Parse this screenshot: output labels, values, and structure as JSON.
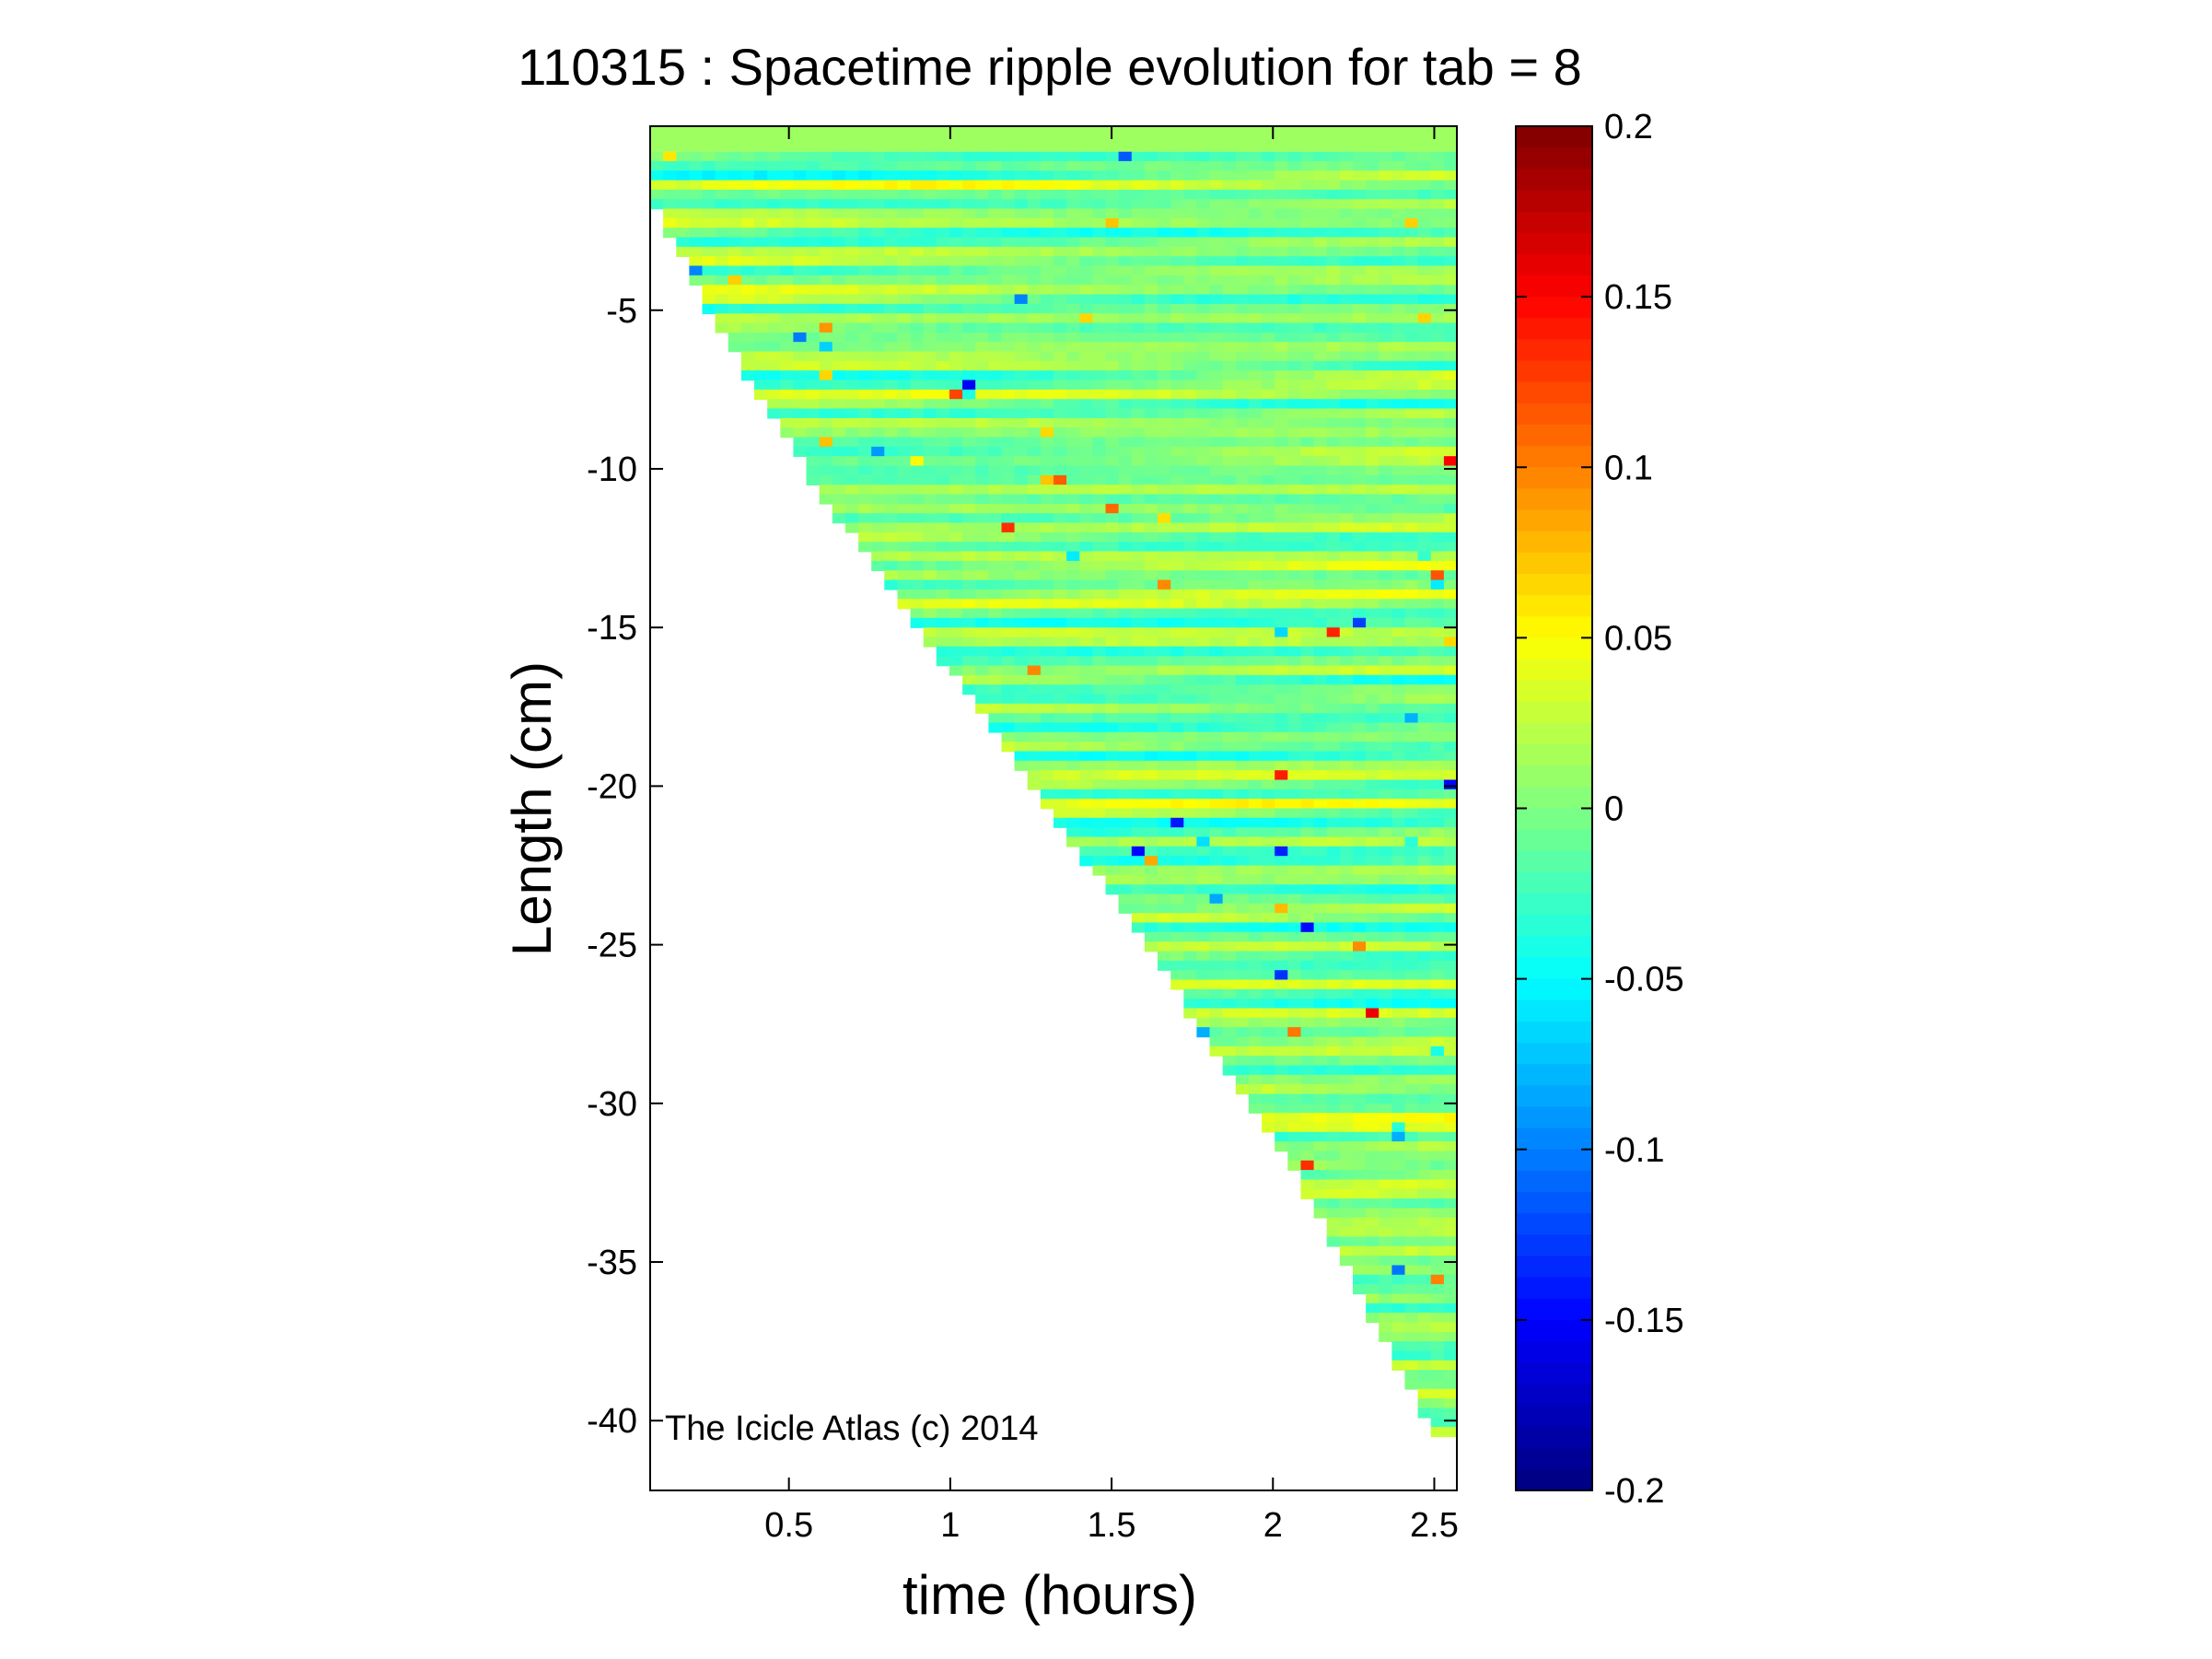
{
  "chart_data": {
    "type": "heatmap",
    "title": "110315 : Spacetime ripple evolution for tab = 8",
    "xlabel": "time (hours)",
    "ylabel": "Length (cm)",
    "xlim": [
      0.07,
      2.57
    ],
    "ylim": [
      -42.2,
      0.8
    ],
    "xticks": [
      0.5,
      1,
      1.5,
      2,
      2.5
    ],
    "xtick_labels": [
      "0.5",
      "1",
      "1.5",
      "2",
      "2.5"
    ],
    "yticks": [
      -5,
      -10,
      -15,
      -20,
      -25,
      -30,
      -35,
      -40
    ],
    "ytick_labels": [
      "-5",
      "-10",
      "-15",
      "-20",
      "-25",
      "-30",
      "-35",
      "-40"
    ],
    "colorbar": {
      "colormap": "jet",
      "clim": [
        -0.2,
        0.2
      ],
      "ticks": [
        0.2,
        0.15,
        0.1,
        0.05,
        0,
        -0.05,
        -0.1,
        -0.15,
        -0.2
      ],
      "tick_labels": [
        "0.2",
        "0.15",
        "0.1",
        "0.05",
        "0",
        "-0.05",
        "-0.1",
        "-0.15",
        "-0.2"
      ]
    },
    "domain_edge": {
      "description": "icicle length grows with time; data exist only for length >= lower edge",
      "time": [
        0.07,
        0.14,
        0.27,
        0.6,
        1.0,
        1.5,
        2.0,
        2.3,
        2.5
      ],
      "length_min": [
        -1.6,
        -2.8,
        -5.4,
        -10.8,
        -16.4,
        -23.5,
        -31.0,
        -36.6,
        -40.5
      ]
    },
    "value_range": [
      -0.2,
      0.2
    ],
    "typical_amplitude": 0.03,
    "ripple_wavelength_cm": 1.1,
    "grid": false,
    "annotation": "The Icicle Atlas (c) 2014"
  }
}
